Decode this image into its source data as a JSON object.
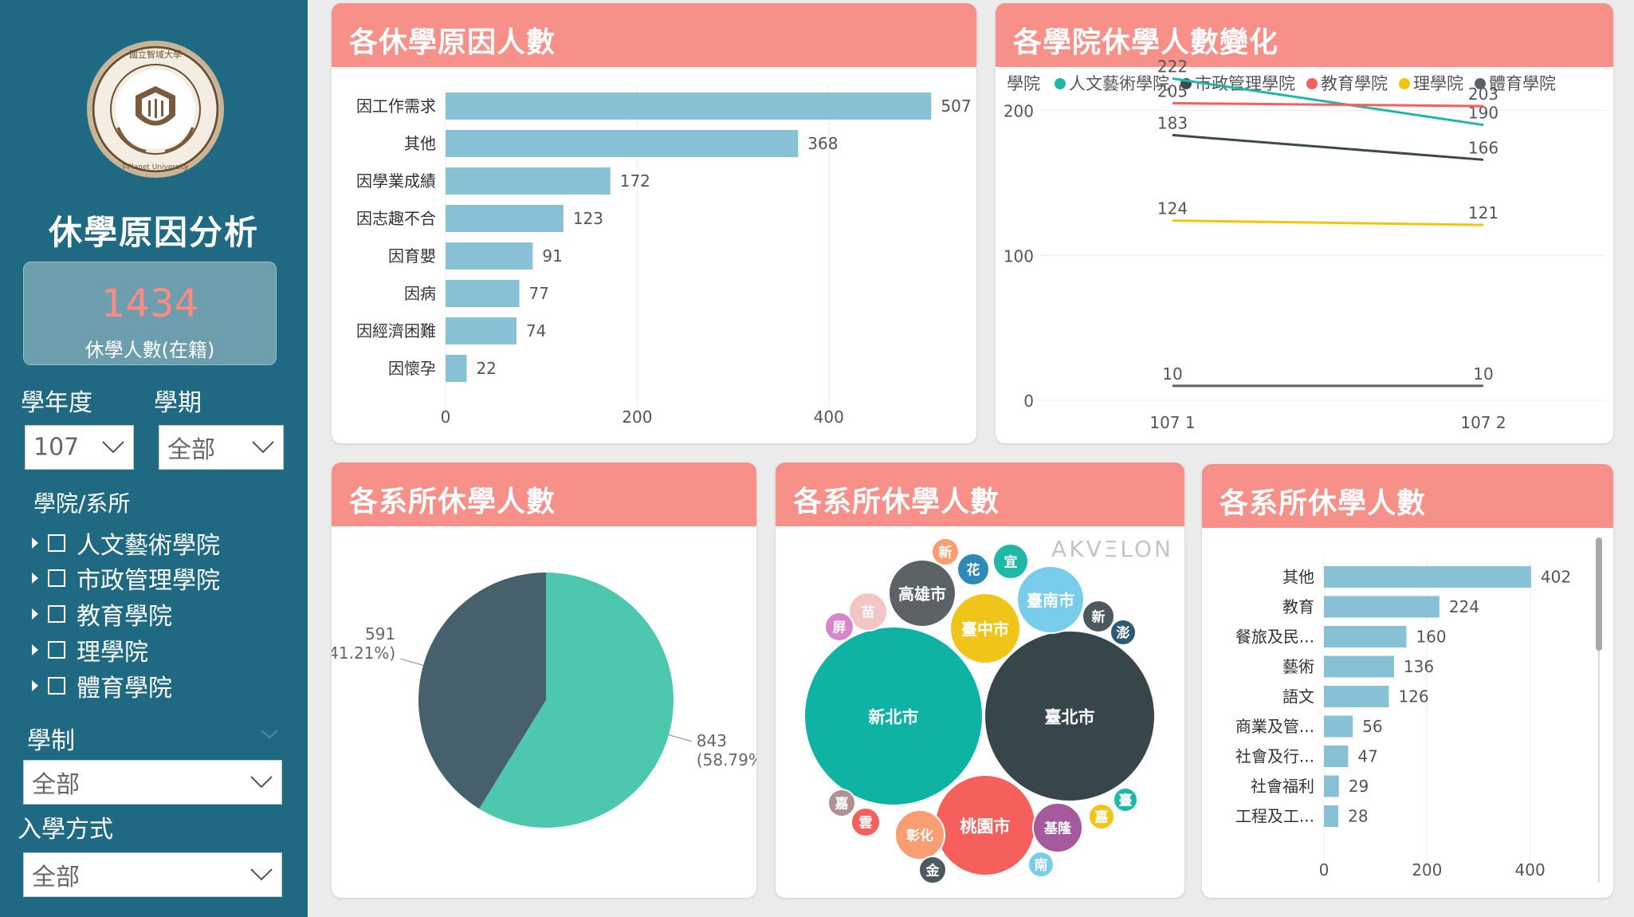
{
  "sidebar": {
    "logo_text": "國立智域大學 National I-Planet University",
    "title": "休學原因分析",
    "kpi_value": "1434",
    "kpi_label": "休學人數(在籍)",
    "year_label": "學年度",
    "term_label": "學期",
    "year_value": "107",
    "term_value": "全部",
    "college_label": "學院/系所",
    "colleges": [
      "人文藝術學院",
      "市政管理學院",
      "教育學院",
      "理學院",
      "體育學院"
    ],
    "system_label": "學制",
    "system_value": "全部",
    "admission_label": "入學方式",
    "admission_value": "全部"
  },
  "cards": {
    "reasons_title": "各休學原因人數",
    "trend_title": "各學院休學人數變化",
    "pie_title": "各系所休學人數",
    "bubble_title": "各系所休學人數",
    "dept_title": "各系所休學人數",
    "bubble_watermark": "AKVΞLON"
  },
  "colors": {
    "sidebar_bg": "#1f6a82",
    "header_bg": "#f69088",
    "bar": "#88c0d6",
    "kpi_value": "#ff8a82"
  },
  "chart_data": [
    {
      "type": "bar",
      "orientation": "horizontal",
      "categories": [
        "因工作需求",
        "其他",
        "因學業成績",
        "因志趣不合",
        "因育嬰",
        "因病",
        "因經濟困難",
        "因懷孕"
      ],
      "values": [
        507,
        368,
        172,
        123,
        91,
        77,
        74,
        22
      ],
      "xlim": [
        0,
        520
      ],
      "xticks": [
        0,
        200,
        400
      ]
    },
    {
      "type": "line",
      "legend_title": "學院",
      "x": [
        "107 1",
        "107 2"
      ],
      "series": [
        {
          "name": "人文藝術學院",
          "color": "#1fb8a6",
          "values": [
            222,
            190
          ]
        },
        {
          "name": "市政管理學院",
          "color": "#3c4a4e",
          "values": [
            183,
            166
          ]
        },
        {
          "name": "教育學院",
          "color": "#f5605d",
          "values": [
            205,
            203
          ]
        },
        {
          "name": "理學院",
          "color": "#f1c40f",
          "values": [
            124,
            121
          ]
        },
        {
          "name": "體育學院",
          "color": "#5a6268",
          "values": [
            10,
            10
          ]
        }
      ],
      "ylim": [
        0,
        230
      ],
      "yticks": [
        0,
        100,
        200
      ],
      "legend_position": "top"
    },
    {
      "type": "pie",
      "slices": [
        {
          "value": 843,
          "label": "843",
          "pct": "(58.79%)",
          "color": "#4dc8ae"
        },
        {
          "value": 591,
          "label": "591",
          "pct": "(41.21%)",
          "color": "#46616b"
        }
      ]
    },
    {
      "type": "bubble",
      "items": [
        {
          "label": "新北市",
          "color": "#0fb3a4"
        },
        {
          "label": "臺北市",
          "color": "#37464a"
        },
        {
          "label": "桃園市",
          "color": "#f5605d"
        },
        {
          "label": "臺中市",
          "color": "#f0c419"
        },
        {
          "label": "高雄市",
          "color": "#5a6266"
        },
        {
          "label": "臺南市",
          "color": "#79cdea"
        },
        {
          "label": "基隆",
          "color": "#a45a9c"
        },
        {
          "label": "彰化",
          "color": "#f99e72"
        },
        {
          "label": "苗",
          "color": "#f4c5c5"
        },
        {
          "label": "花",
          "color": "#2d8ab8"
        },
        {
          "label": "宜",
          "color": "#1fb8a6"
        },
        {
          "label": "新",
          "color": "#f99e72"
        },
        {
          "label": "新",
          "color": "#4b5a5e"
        },
        {
          "label": "澎",
          "color": "#2d5a74"
        },
        {
          "label": "屏",
          "color": "#d686c9"
        },
        {
          "label": "嘉",
          "color": "#b09090"
        },
        {
          "label": "雲",
          "color": "#f5605d"
        },
        {
          "label": "金",
          "color": "#4b5a5e"
        },
        {
          "label": "南",
          "color": "#79cdea"
        },
        {
          "label": "嘉",
          "color": "#f0c419"
        },
        {
          "label": "臺",
          "color": "#1fb8a6"
        }
      ]
    },
    {
      "type": "bar",
      "orientation": "horizontal",
      "categories": [
        "其他",
        "教育",
        "餐旅及民...",
        "藝術",
        "語文",
        "商業及管...",
        "社會及行...",
        "社會福利",
        "工程及工..."
      ],
      "values": [
        402,
        224,
        160,
        136,
        126,
        56,
        47,
        29,
        28
      ],
      "xlim": [
        0,
        430
      ],
      "xticks": [
        0,
        200,
        400
      ]
    }
  ]
}
